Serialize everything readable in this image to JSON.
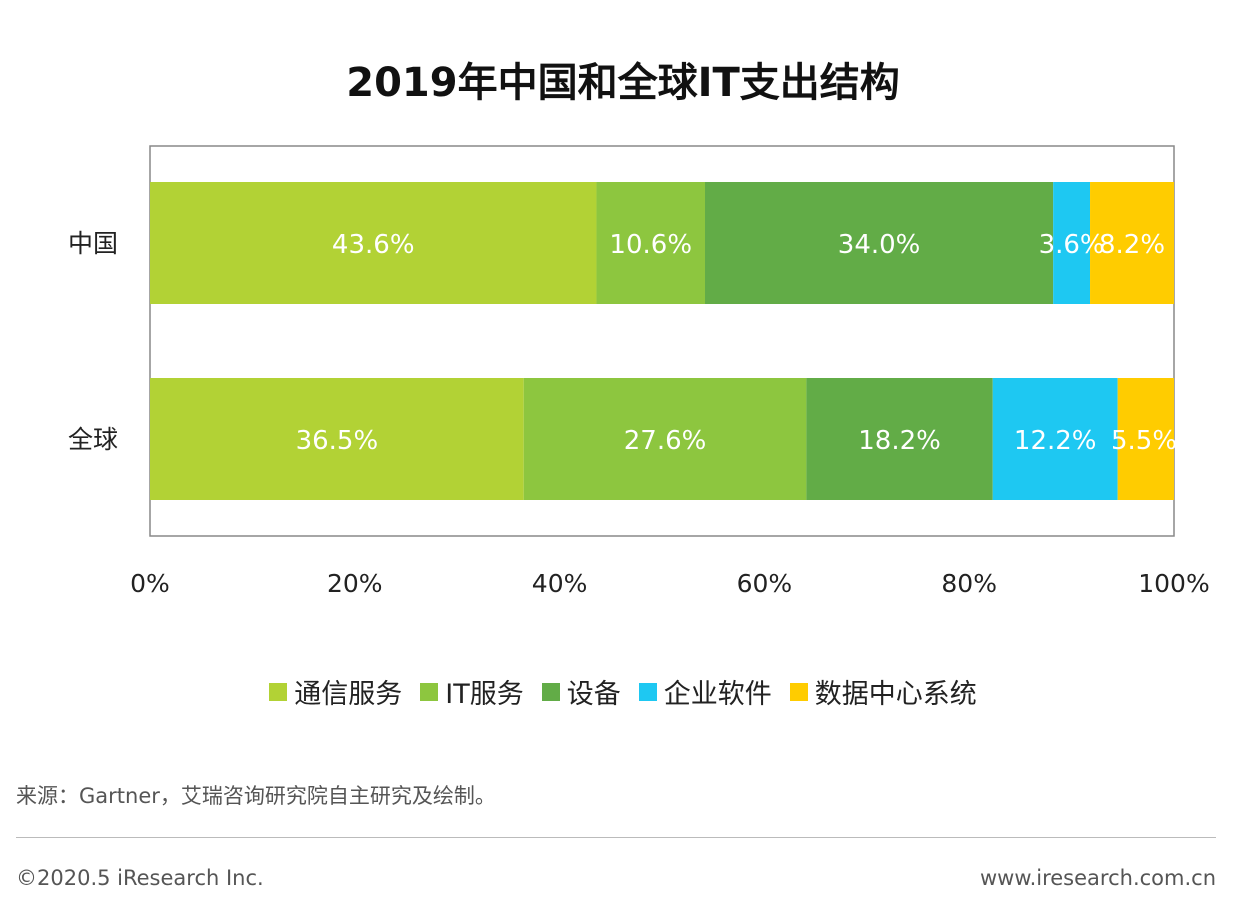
{
  "chart_data": {
    "type": "bar",
    "orientation": "horizontal",
    "stacked": true,
    "title": "2019年中国和全球IT支出结构",
    "categories": [
      "中国",
      "全球"
    ],
    "series": [
      {
        "name": "通信服务",
        "values": [
          43.6,
          36.5
        ],
        "color": "#b2d235"
      },
      {
        "name": "IT服务",
        "values": [
          10.6,
          27.6
        ],
        "color": "#8dc63f"
      },
      {
        "name": "设备",
        "values": [
          34.0,
          18.2
        ],
        "color": "#62ac47"
      },
      {
        "name": "企业软件",
        "values": [
          3.6,
          12.2
        ],
        "color": "#1ec8f2"
      },
      {
        "name": "数据中心系统",
        "values": [
          8.2,
          5.5
        ],
        "color": "#ffcc00"
      }
    ],
    "data_labels": [
      [
        "43.6%",
        "10.6%",
        "34.0%",
        "3.6%",
        "8.2%"
      ],
      [
        "36.5%",
        "27.6%",
        "18.2%",
        "12.2%",
        "5.5%"
      ]
    ],
    "xlim": [
      0,
      100
    ],
    "x_ticks": [
      "0%",
      "20%",
      "40%",
      "60%",
      "80%",
      "100%"
    ],
    "legend_position": "bottom",
    "grid": false
  },
  "footer": {
    "source": "来源：Gartner，艾瑞咨询研究院自主研究及绘制。",
    "copyright": "©2020.5 iResearch Inc.",
    "website": "www.iresearch.com.cn"
  }
}
